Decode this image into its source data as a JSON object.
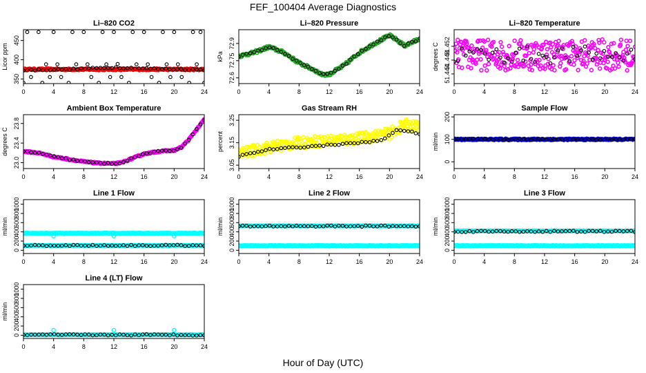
{
  "figure": {
    "title": "FEF_100404  Average Diagnostics",
    "xlabel": "Hour of Day (UTC)"
  },
  "colors": {
    "co2": "#ff0000",
    "pressure": "#22aa22",
    "temperature": "#ff00ff",
    "box_temperature": "#ff00ff",
    "rh": "#ffff00",
    "sample_flow": "#0000cc",
    "line_flow": "#00ffff",
    "average_markers": "#000000"
  },
  "chart_data": [
    {
      "type": "scatter",
      "title": "Li–820 CO2",
      "ylabel": "Licor ppm",
      "color": "#ff0000",
      "xlim": [
        0,
        24
      ],
      "ylim": [
        338,
        478
      ],
      "yticks": [
        350,
        400,
        450
      ],
      "ytick_labels": [
        "350",
        "400",
        "450"
      ],
      "xticks": [
        0,
        4,
        8,
        12,
        16,
        20,
        24
      ],
      "dense": {
        "pattern": "flat",
        "level": 375,
        "noise": 2,
        "n": 240
      },
      "avg": {
        "pattern": "co2",
        "n": 48
      },
      "outliers": [
        [
          0,
          340
        ],
        [
          1,
          355
        ],
        [
          2,
          472
        ],
        [
          3,
          388
        ],
        [
          4,
          472
        ],
        [
          5,
          355
        ],
        [
          6,
          340
        ],
        [
          7,
          388
        ],
        [
          8,
          472
        ],
        [
          9,
          355
        ],
        [
          10,
          340
        ],
        [
          11,
          388
        ],
        [
          12,
          472
        ],
        [
          12.5,
          389
        ],
        [
          13,
          355
        ],
        [
          14,
          340
        ],
        [
          15,
          388
        ],
        [
          16,
          472
        ],
        [
          17,
          355
        ],
        [
          18,
          340
        ],
        [
          19,
          388
        ],
        [
          20,
          472
        ],
        [
          21,
          355
        ],
        [
          22,
          340
        ],
        [
          23,
          388
        ],
        [
          23.5,
          472
        ],
        [
          24,
          340
        ],
        [
          2.5,
          340
        ],
        [
          6.5,
          472
        ],
        [
          10.5,
          472
        ],
        [
          14.5,
          472
        ],
        [
          18.5,
          472
        ],
        [
          22.5,
          472
        ],
        [
          3.5,
          355
        ],
        [
          11.5,
          355
        ],
        [
          19.5,
          355
        ],
        [
          0.5,
          472
        ],
        [
          8.5,
          388
        ],
        [
          16.5,
          388
        ],
        [
          20.5,
          388
        ],
        [
          4.5,
          388
        ]
      ]
    },
    {
      "type": "scatter",
      "title": "Li–820 Pressure",
      "ylabel": "kPa",
      "color": "#22aa22",
      "xlim": [
        0,
        24
      ],
      "ylim": [
        72.55,
        73.02
      ],
      "yticks": [
        72.6,
        72.75,
        72.9
      ],
      "ytick_labels": [
        "72.6",
        "72.75",
        "72.9"
      ],
      "xticks": [
        0,
        4,
        8,
        12,
        16,
        20,
        24
      ],
      "dense": {
        "pattern": "pressure",
        "noise": 0.012,
        "n": 240
      },
      "avg": {
        "pattern": "pressure",
        "n": 48
      }
    },
    {
      "type": "scatter",
      "title": "Li–820 Temperature",
      "ylabel": "degrees C",
      "color": "#ff00ff",
      "xlim": [
        0,
        24
      ],
      "ylim": [
        51.4412,
        51.4568
      ],
      "yticks": [
        51.444,
        51.448,
        51.452
      ],
      "ytick_labels": [
        "51.444",
        "51.448",
        "51.452"
      ],
      "xticks": [
        0,
        4,
        8,
        12,
        16,
        20,
        24
      ],
      "dense": {
        "pattern": "flat",
        "level": 51.4495,
        "noise": 0.0045,
        "n": 300
      },
      "avg": {
        "pattern": "flat_avg",
        "level": 51.4495,
        "noise": 0.0025,
        "n": 48
      }
    },
    {
      "type": "scatter",
      "title": "Ambient Box Temperature",
      "ylabel": "degrees C",
      "color": "#ff00ff",
      "xlim": [
        0,
        24
      ],
      "ylim": [
        22.88,
        23.98
      ],
      "yticks": [
        23.0,
        23.4,
        23.8
      ],
      "ytick_labels": [
        "23.0",
        "23.4",
        "23.8"
      ],
      "xticks": [
        0,
        4,
        8,
        12,
        16,
        20,
        24
      ],
      "dense": {
        "pattern": "boxtemp",
        "noise": 0.015,
        "n": 240
      },
      "avg": {
        "pattern": "boxtemp",
        "n": 48
      }
    },
    {
      "type": "scatter",
      "title": "Gas Stream RH",
      "ylabel": "percent",
      "color": "#ffff00",
      "xlim": [
        0,
        24
      ],
      "ylim": [
        3.035,
        3.275
      ],
      "yticks": [
        3.05,
        3.15,
        3.25
      ],
      "ytick_labels": [
        "3.05",
        "3.15",
        "3.25"
      ],
      "xticks": [
        0,
        4,
        8,
        12,
        16,
        20,
        24
      ],
      "dense": {
        "pattern": "rh",
        "noise": 0.025,
        "n": 300
      },
      "avg": {
        "pattern": "rh_avg",
        "n": 48
      }
    },
    {
      "type": "scatter",
      "title": "Sample Flow",
      "ylabel": "ml/min",
      "color": "#0000cc",
      "xlim": [
        0,
        24
      ],
      "ylim": [
        -30,
        210
      ],
      "yticks": [
        0,
        100,
        200
      ],
      "ytick_labels": [
        "0",
        "100",
        "200"
      ],
      "xticks": [
        0,
        4,
        8,
        12,
        16,
        20,
        24
      ],
      "dense": {
        "pattern": "flat",
        "level": 100,
        "noise": 3,
        "n": 240
      },
      "avg": {
        "pattern": "flat",
        "level": 100,
        "n": 48
      }
    },
    {
      "type": "scatter",
      "title": "Line 1 Flow",
      "ylabel": "ml/min",
      "color": "#00ffff",
      "xlim": [
        0,
        24
      ],
      "ylim": [
        -70,
        1100
      ],
      "yticks": [
        0,
        200,
        400,
        600,
        800,
        1000
      ],
      "ytick_labels": [
        "0",
        "200",
        "400",
        "600",
        "800",
        "1000"
      ],
      "xticks": [
        0,
        4,
        8,
        12,
        16,
        20,
        24
      ],
      "bands": [
        {
          "level": 370,
          "n": 120
        },
        {
          "level": 105,
          "n": 120
        }
      ],
      "avg": {
        "pattern": "flat",
        "level": 105,
        "n": 48
      },
      "outliers_color": [
        [
          4,
          310
        ],
        [
          12,
          310
        ],
        [
          20,
          310
        ]
      ]
    },
    {
      "type": "scatter",
      "title": "Line 2 Flow",
      "ylabel": "ml/min",
      "color": "#00ffff",
      "xlim": [
        0,
        24
      ],
      "ylim": [
        -70,
        1100
      ],
      "yticks": [
        0,
        200,
        400,
        600,
        800,
        1000
      ],
      "ytick_labels": [
        "0",
        "200",
        "400",
        "600",
        "800",
        "1000"
      ],
      "xticks": [
        0,
        4,
        8,
        12,
        16,
        20,
        24
      ],
      "bands": [
        {
          "level": 530,
          "n": 120
        },
        {
          "level": 100,
          "n": 120
        }
      ],
      "avg": {
        "pattern": "flat",
        "level": 525,
        "n": 48
      }
    },
    {
      "type": "scatter",
      "title": "Line 3 Flow",
      "ylabel": "ml/min",
      "color": "#00ffff",
      "xlim": [
        0,
        24
      ],
      "ylim": [
        -70,
        1100
      ],
      "yticks": [
        0,
        200,
        400,
        600,
        800,
        1000
      ],
      "ytick_labels": [
        "0",
        "200",
        "400",
        "600",
        "800",
        "1000"
      ],
      "xticks": [
        0,
        4,
        8,
        12,
        16,
        20,
        24
      ],
      "bands": [
        {
          "level": 420,
          "n": 120
        },
        {
          "level": 100,
          "n": 120
        }
      ],
      "avg": {
        "pattern": "flat",
        "level": 410,
        "n": 48
      }
    },
    {
      "type": "scatter",
      "title": "Line 4 (LT) Flow",
      "ylabel": "ml/min",
      "color": "#00ffff",
      "xlim": [
        0,
        24
      ],
      "ylim": [
        -70,
        1100
      ],
      "yticks": [
        0,
        200,
        400,
        600,
        800,
        1000
      ],
      "ytick_labels": [
        "0",
        "200",
        "400",
        "600",
        "800",
        "1000"
      ],
      "xticks": [
        0,
        4,
        8,
        12,
        16,
        20,
        24
      ],
      "bands": [
        {
          "level": 10,
          "n": 120
        }
      ],
      "avg": {
        "pattern": "flat",
        "level": 8,
        "n": 48
      },
      "outliers_color": [
        [
          4,
          110
        ],
        [
          12,
          110
        ],
        [
          20,
          110
        ]
      ]
    }
  ]
}
